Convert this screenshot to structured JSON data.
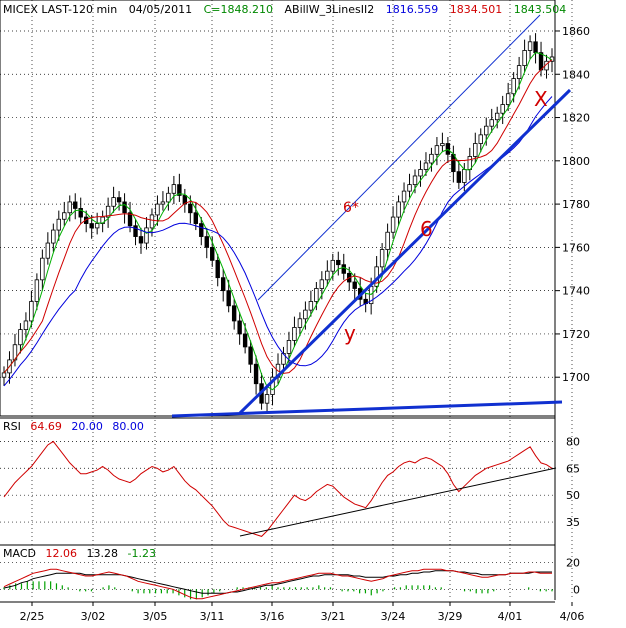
{
  "colors": {
    "up": "#000000",
    "down": "#000000",
    "green": "#00b000",
    "red": "#d00000",
    "blue": "#0000dd",
    "trend": "#1030d0",
    "rsi": "#d00000",
    "grid": "#000000"
  },
  "header": {
    "symbol": "MICEX LAST-120 min",
    "date": "04/05/2011",
    "close": "C=1848.210",
    "indicator": "ABillW_3LinesII2",
    "v_blue": "1816.559",
    "v_red": "1834.501",
    "v_green": "1843.504"
  },
  "chart_data": [
    {
      "type": "candlestick",
      "title": "",
      "x_ticks": [
        "2/25",
        "3/02",
        "3/05",
        "3/11",
        "3/16",
        "3/21",
        "3/24",
        "3/29",
        "4/01",
        "4/06"
      ],
      "y_ticks": [
        1700,
        1720,
        1740,
        1760,
        1780,
        1800,
        1820,
        1840,
        1860
      ],
      "ylim": [
        1683,
        1866
      ],
      "grid": true,
      "series_close": [
        1702,
        1708,
        1715,
        1722,
        1726,
        1735,
        1745,
        1755,
        1762,
        1768,
        1773,
        1776,
        1781,
        1778,
        1774,
        1771,
        1769,
        1771,
        1774,
        1779,
        1783,
        1781,
        1776,
        1770,
        1765,
        1762,
        1769,
        1775,
        1780,
        1781,
        1785,
        1789,
        1784,
        1780,
        1776,
        1771,
        1765,
        1760,
        1754,
        1746,
        1740,
        1733,
        1726,
        1720,
        1714,
        1706,
        1697,
        1688,
        1692,
        1700,
        1706,
        1711,
        1717,
        1723,
        1727,
        1731,
        1735,
        1741,
        1745,
        1749,
        1754,
        1752,
        1748,
        1744,
        1741,
        1736,
        1734,
        1742,
        1751,
        1759,
        1767,
        1774,
        1781,
        1786,
        1789,
        1793,
        1796,
        1799,
        1803,
        1807,
        1808,
        1803,
        1795,
        1790,
        1796,
        1802,
        1808,
        1812,
        1816,
        1819,
        1822,
        1826,
        1831,
        1838,
        1844,
        1851,
        1855,
        1850,
        1842,
        1846,
        1848
      ],
      "annotations": [
        "6*",
        "6",
        "y",
        "X"
      ]
    },
    {
      "type": "line",
      "title": "RSI",
      "params": [
        "64.69",
        "20.00",
        "80.00"
      ],
      "y_ticks": [
        35,
        50,
        65,
        80
      ],
      "ylim": [
        25,
        83
      ],
      "series": [
        {
          "name": "RSI",
          "values": [
            49,
            53,
            57,
            60,
            63,
            66,
            70,
            74,
            78,
            80,
            76,
            72,
            68,
            65,
            62,
            62,
            63,
            64,
            66,
            64,
            61,
            59,
            58,
            57,
            59,
            62,
            64,
            66,
            65,
            63,
            64,
            66,
            62,
            58,
            55,
            53,
            50,
            47,
            44,
            40,
            36,
            33,
            32,
            31,
            30,
            29,
            28,
            27,
            30,
            34,
            38,
            42,
            46,
            50,
            48,
            47,
            49,
            52,
            54,
            56,
            55,
            52,
            49,
            47,
            45,
            44,
            43,
            47,
            52,
            57,
            61,
            63,
            66,
            68,
            69,
            68,
            70,
            71,
            70,
            68,
            66,
            62,
            56,
            52,
            55,
            58,
            61,
            63,
            65,
            66,
            67,
            68,
            69,
            71,
            73,
            75,
            77,
            72,
            68,
            67,
            65
          ]
        }
      ]
    },
    {
      "type": "line",
      "title": "MACD",
      "params": [
        "12.06",
        "13.28",
        "-1.23"
      ],
      "y_ticks": [
        0,
        20
      ],
      "ylim": [
        -8,
        28
      ],
      "series": [
        {
          "name": "MACD",
          "values": [
            2,
            4,
            6,
            8,
            10,
            12,
            13,
            14,
            15,
            15,
            14,
            13,
            12,
            11,
            10,
            10,
            11,
            12,
            13,
            12,
            11,
            10,
            8,
            6,
            5,
            4,
            3,
            2,
            1,
            0,
            -2,
            -4,
            -6,
            -7,
            -7,
            -6,
            -5,
            -4,
            -3,
            -2,
            -1,
            0,
            1,
            2,
            3,
            4,
            5,
            5,
            6,
            7,
            8,
            9,
            10,
            11,
            12,
            12,
            12,
            11,
            10,
            10,
            9,
            8,
            7,
            6,
            7,
            8,
            10,
            11,
            12,
            13,
            14,
            14,
            15,
            15,
            15,
            15,
            14,
            14,
            13,
            12,
            11,
            10,
            9,
            9,
            10,
            11,
            11,
            12,
            12,
            12,
            13,
            13,
            12,
            12,
            12
          ]
        },
        {
          "name": "Signal",
          "values": [
            1,
            2,
            3,
            5,
            6,
            8,
            9,
            10,
            11,
            12,
            12,
            12,
            12,
            12,
            11,
            11,
            11,
            11,
            11,
            11,
            11,
            10,
            9,
            8,
            7,
            6,
            5,
            4,
            3,
            2,
            1,
            0,
            -1,
            -2,
            -3,
            -3,
            -3,
            -3,
            -3,
            -2,
            -2,
            -1,
            0,
            1,
            2,
            3,
            3,
            4,
            5,
            6,
            7,
            8,
            9,
            10,
            10,
            11,
            11,
            11,
            11,
            11,
            10,
            10,
            9,
            9,
            9,
            9,
            10,
            10,
            11,
            11,
            12,
            12,
            13,
            13,
            14,
            14,
            14,
            14,
            13,
            13,
            12,
            12,
            11,
            11,
            11,
            11,
            11,
            12,
            12,
            12,
            12,
            13,
            13,
            13,
            13
          ]
        }
      ]
    }
  ]
}
